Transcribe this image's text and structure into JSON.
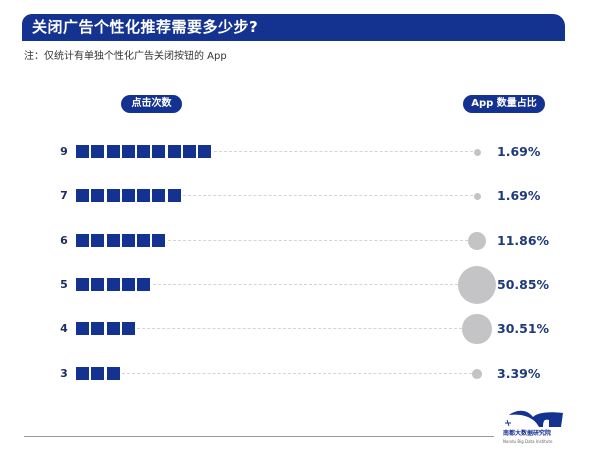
{
  "header": {
    "title": "关闭广告个性化推荐需要多少步?"
  },
  "note": "注：仅统计有单独个性化广告关闭按钮的 App",
  "columns": {
    "left": "点击次数",
    "right": "App 数量占比"
  },
  "colors": {
    "primary": "#14328f",
    "bubble": "#c4c4c6",
    "percent_text": "#1f3a7a"
  },
  "rows": [
    {
      "clicks": "9",
      "count": 9,
      "percent": "1.69%",
      "value": 1.69
    },
    {
      "clicks": "7",
      "count": 7,
      "percent": "1.69%",
      "value": 1.69
    },
    {
      "clicks": "6",
      "count": 6,
      "percent": "11.86%",
      "value": 11.86
    },
    {
      "clicks": "5",
      "count": 5,
      "percent": "50.85%",
      "value": 50.85
    },
    {
      "clicks": "4",
      "count": 4,
      "percent": "30.51%",
      "value": 30.51
    },
    {
      "clicks": "3",
      "count": 3,
      "percent": "3.39%",
      "value": 3.39
    }
  ],
  "logo": {
    "name_cn": "南都大数据研究院",
    "name_en": "Nandu Big Data Institute"
  },
  "chart_data": {
    "type": "table",
    "title": "关闭广告个性化推荐需要多少步?",
    "subtitle": "注：仅统计有单独个性化广告关闭按钮的 App",
    "xlabel": "点击次数",
    "ylabel": "App 数量占比",
    "categories": [
      "9",
      "7",
      "6",
      "5",
      "4",
      "3"
    ],
    "series": [
      {
        "name": "点击次数 (squares)",
        "values": [
          9,
          7,
          6,
          5,
          4,
          3
        ]
      },
      {
        "name": "App 数量占比 (%)",
        "values": [
          1.69,
          1.69,
          11.86,
          50.85,
          30.51,
          3.39
        ]
      }
    ],
    "legend": "none",
    "grid": false
  }
}
